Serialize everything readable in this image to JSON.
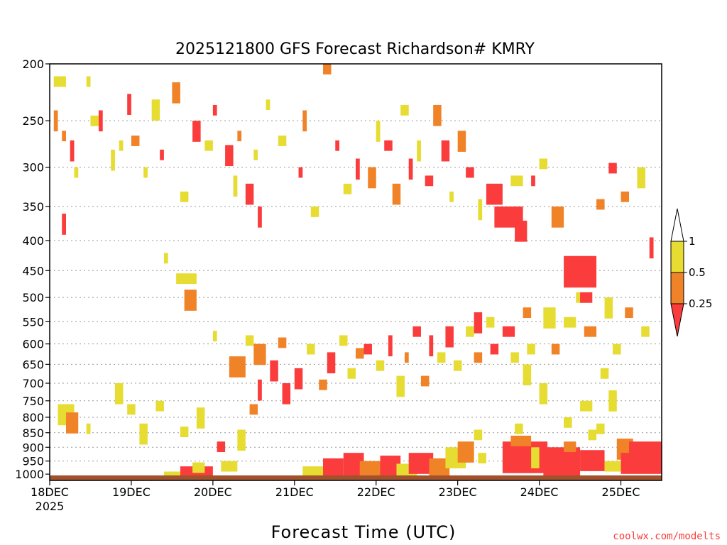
{
  "chart_data": {
    "type": "heatmap",
    "title": "2025121800 GFS Forecast Richardson# KMRY",
    "xlabel": "Forecast Time (UTC)",
    "ylabel": "",
    "credit": "coolwx.com/modelts",
    "x_ticks": [
      {
        "day": 0,
        "label": "18DEC",
        "sublabel": "2025"
      },
      {
        "day": 1,
        "label": "19DEC"
      },
      {
        "day": 2,
        "label": "20DEC"
      },
      {
        "day": 3,
        "label": "21DEC"
      },
      {
        "day": 4,
        "label": "22DEC"
      },
      {
        "day": 5,
        "label": "23DEC"
      },
      {
        "day": 6,
        "label": "24DEC"
      },
      {
        "day": 7,
        "label": "25DEC"
      }
    ],
    "xlim": [
      0,
      7.5
    ],
    "y_levels": [
      200,
      250,
      300,
      350,
      400,
      450,
      500,
      550,
      600,
      650,
      700,
      750,
      800,
      850,
      900,
      950,
      1000
    ],
    "ylim": [
      200,
      1025
    ],
    "y_scale": "pressure (hPa), log",
    "legend": {
      "labels": [
        "1",
        "0.5",
        "0.25"
      ],
      "bins": [
        {
          "range": "0.5-1",
          "color": "#e6dc32"
        },
        {
          "range": "0.25-0.5",
          "color": "#f08228"
        },
        {
          "range": "<0.25",
          "color": "#fa3c3c"
        }
      ]
    },
    "colors": {
      "low": "#fa3c3c",
      "mid": "#f08228",
      "high": "#e6dc32",
      "ground": "#a0522d"
    },
    "cells": [
      [
        0.05,
        210,
        0.2,
        1,
        "high"
      ],
      [
        0.05,
        240,
        0.1,
        2,
        "mid"
      ],
      [
        0.15,
        260,
        0.2,
        1,
        "mid"
      ],
      [
        0.25,
        270,
        0.3,
        2,
        "low"
      ],
      [
        0.3,
        300,
        0.35,
        1,
        "high"
      ],
      [
        0.15,
        360,
        0.2,
        2,
        "low"
      ],
      [
        0.45,
        210,
        0.5,
        1,
        "high"
      ],
      [
        0.5,
        245,
        0.6,
        1,
        "high"
      ],
      [
        0.6,
        240,
        0.65,
        2,
        "low"
      ],
      [
        0.75,
        280,
        0.8,
        2,
        "high"
      ],
      [
        0.85,
        270,
        0.9,
        1,
        "high"
      ],
      [
        0.95,
        225,
        1.0,
        2,
        "low"
      ],
      [
        1.0,
        265,
        1.1,
        1,
        "mid"
      ],
      [
        1.15,
        300,
        1.2,
        1,
        "high"
      ],
      [
        1.25,
        230,
        1.35,
        2,
        "high"
      ],
      [
        1.35,
        280,
        1.4,
        1,
        "low"
      ],
      [
        1.5,
        215,
        1.6,
        2,
        "mid"
      ],
      [
        1.6,
        330,
        1.7,
        1,
        "high"
      ],
      [
        1.75,
        250,
        1.85,
        2,
        "low"
      ],
      [
        1.9,
        270,
        2.0,
        1,
        "high"
      ],
      [
        2.0,
        235,
        2.05,
        1,
        "low"
      ],
      [
        2.15,
        275,
        2.25,
        2,
        "low"
      ],
      [
        2.25,
        310,
        2.3,
        2,
        "high"
      ],
      [
        2.3,
        260,
        2.35,
        1,
        "mid"
      ],
      [
        2.4,
        320,
        2.5,
        2,
        "low"
      ],
      [
        2.5,
        280,
        2.55,
        1,
        "high"
      ],
      [
        2.55,
        350,
        2.6,
        2,
        "low"
      ],
      [
        2.65,
        230,
        2.7,
        1,
        "high"
      ],
      [
        2.8,
        265,
        2.9,
        1,
        "high"
      ],
      [
        3.05,
        300,
        3.1,
        1,
        "low"
      ],
      [
        3.1,
        240,
        3.15,
        2,
        "mid"
      ],
      [
        3.2,
        350,
        3.3,
        1,
        "high"
      ],
      [
        3.35,
        200,
        3.45,
        1,
        "mid"
      ],
      [
        3.5,
        270,
        3.55,
        1,
        "low"
      ],
      [
        3.6,
        320,
        3.7,
        1,
        "high"
      ],
      [
        3.75,
        290,
        3.8,
        2,
        "low"
      ],
      [
        3.9,
        300,
        4.0,
        2,
        "mid"
      ],
      [
        4.0,
        250,
        4.05,
        2,
        "high"
      ],
      [
        4.1,
        270,
        4.2,
        1,
        "low"
      ],
      [
        4.2,
        320,
        4.3,
        2,
        "mid"
      ],
      [
        4.3,
        235,
        4.4,
        1,
        "high"
      ],
      [
        4.4,
        290,
        4.45,
        2,
        "low"
      ],
      [
        4.5,
        270,
        4.55,
        2,
        "high"
      ],
      [
        4.6,
        310,
        4.7,
        1,
        "low"
      ],
      [
        4.7,
        235,
        4.8,
        2,
        "mid"
      ],
      [
        4.8,
        270,
        4.9,
        2,
        "low"
      ],
      [
        4.9,
        330,
        4.95,
        1,
        "high"
      ],
      [
        5.0,
        260,
        5.1,
        2,
        "mid"
      ],
      [
        5.1,
        300,
        5.2,
        1,
        "low"
      ],
      [
        5.25,
        340,
        5.3,
        2,
        "high"
      ],
      [
        5.35,
        320,
        5.55,
        2,
        "low"
      ],
      [
        5.45,
        350,
        5.8,
        2,
        "low"
      ],
      [
        5.65,
        310,
        5.8,
        1,
        "high"
      ],
      [
        5.7,
        370,
        5.85,
        2,
        "low"
      ],
      [
        5.9,
        310,
        5.95,
        1,
        "low"
      ],
      [
        6.0,
        290,
        6.1,
        1,
        "high"
      ],
      [
        6.15,
        350,
        6.3,
        2,
        "mid"
      ],
      [
        6.3,
        425,
        6.7,
        3,
        "low"
      ],
      [
        6.45,
        490,
        6.6,
        1,
        "high"
      ],
      [
        6.7,
        340,
        6.8,
        1,
        "mid"
      ],
      [
        6.85,
        295,
        6.95,
        1,
        "low"
      ],
      [
        7.0,
        330,
        7.1,
        1,
        "mid"
      ],
      [
        7.2,
        300,
        7.3,
        2,
        "high"
      ],
      [
        7.35,
        395,
        7.4,
        2,
        "low"
      ],
      [
        1.55,
        455,
        1.8,
        1,
        "high"
      ],
      [
        1.65,
        485,
        1.8,
        2,
        "mid"
      ],
      [
        1.4,
        420,
        1.45,
        1,
        "high"
      ],
      [
        2.0,
        570,
        2.05,
        1,
        "high"
      ],
      [
        2.2,
        630,
        2.4,
        2,
        "mid"
      ],
      [
        2.4,
        580,
        2.5,
        1,
        "high"
      ],
      [
        2.5,
        600,
        2.65,
        2,
        "mid"
      ],
      [
        2.55,
        690,
        2.6,
        2,
        "low"
      ],
      [
        2.7,
        640,
        2.8,
        2,
        "low"
      ],
      [
        2.8,
        585,
        2.9,
        1,
        "mid"
      ],
      [
        2.85,
        700,
        2.95,
        2,
        "low"
      ],
      [
        3.0,
        660,
        3.1,
        2,
        "low"
      ],
      [
        3.15,
        600,
        3.25,
        1,
        "high"
      ],
      [
        3.3,
        690,
        3.4,
        1,
        "mid"
      ],
      [
        3.4,
        620,
        3.5,
        2,
        "low"
      ],
      [
        3.55,
        580,
        3.65,
        1,
        "high"
      ],
      [
        3.65,
        660,
        3.75,
        1,
        "high"
      ],
      [
        3.75,
        610,
        3.85,
        1,
        "mid"
      ],
      [
        3.85,
        600,
        3.95,
        1,
        "low"
      ],
      [
        4.0,
        640,
        4.1,
        1,
        "high"
      ],
      [
        4.15,
        580,
        4.2,
        2,
        "low"
      ],
      [
        4.25,
        680,
        4.35,
        2,
        "high"
      ],
      [
        4.35,
        620,
        4.4,
        1,
        "mid"
      ],
      [
        4.45,
        560,
        4.55,
        1,
        "low"
      ],
      [
        4.55,
        680,
        4.65,
        1,
        "mid"
      ],
      [
        4.65,
        580,
        4.7,
        2,
        "low"
      ],
      [
        4.75,
        620,
        4.85,
        1,
        "high"
      ],
      [
        4.85,
        560,
        4.95,
        2,
        "low"
      ],
      [
        4.95,
        640,
        5.05,
        1,
        "high"
      ],
      [
        5.1,
        560,
        5.2,
        1,
        "high"
      ],
      [
        5.2,
        530,
        5.3,
        2,
        "low"
      ],
      [
        5.2,
        620,
        5.3,
        1,
        "mid"
      ],
      [
        5.35,
        540,
        5.45,
        1,
        "high"
      ],
      [
        5.4,
        600,
        5.5,
        1,
        "low"
      ],
      [
        5.55,
        560,
        5.7,
        1,
        "low"
      ],
      [
        5.65,
        620,
        5.75,
        1,
        "high"
      ],
      [
        5.8,
        520,
        5.9,
        1,
        "mid"
      ],
      [
        5.85,
        600,
        5.95,
        1,
        "high"
      ],
      [
        6.05,
        520,
        6.2,
        2,
        "high"
      ],
      [
        6.15,
        600,
        6.25,
        1,
        "mid"
      ],
      [
        6.3,
        540,
        6.45,
        1,
        "high"
      ],
      [
        6.5,
        490,
        6.65,
        1,
        "low"
      ],
      [
        6.55,
        560,
        6.7,
        1,
        "mid"
      ],
      [
        6.8,
        500,
        6.9,
        2,
        "high"
      ],
      [
        6.9,
        600,
        7.0,
        1,
        "high"
      ],
      [
        7.05,
        520,
        7.15,
        1,
        "mid"
      ],
      [
        7.25,
        560,
        7.35,
        1,
        "high"
      ],
      [
        0.1,
        760,
        0.3,
        2,
        "high"
      ],
      [
        0.2,
        785,
        0.35,
        2,
        "mid"
      ],
      [
        0.45,
        820,
        0.5,
        1,
        "high"
      ],
      [
        0.8,
        700,
        0.9,
        2,
        "high"
      ],
      [
        0.95,
        760,
        1.05,
        1,
        "high"
      ],
      [
        1.1,
        820,
        1.2,
        2,
        "high"
      ],
      [
        1.3,
        750,
        1.4,
        1,
        "high"
      ],
      [
        1.6,
        830,
        1.7,
        1,
        "high"
      ],
      [
        1.8,
        770,
        1.9,
        2,
        "high"
      ],
      [
        2.05,
        880,
        2.15,
        1,
        "low"
      ],
      [
        2.3,
        840,
        2.4,
        2,
        "high"
      ],
      [
        2.45,
        760,
        2.55,
        1,
        "mid"
      ],
      [
        1.6,
        970,
        2.0,
        2,
        "low"
      ],
      [
        1.75,
        955,
        1.9,
        1,
        "high"
      ],
      [
        1.4,
        990,
        1.6,
        1,
        "high"
      ],
      [
        2.1,
        950,
        2.3,
        1,
        "high"
      ],
      [
        3.1,
        970,
        3.4,
        2,
        "high"
      ],
      [
        3.35,
        940,
        3.6,
        2,
        "low"
      ],
      [
        3.6,
        920,
        3.85,
        3,
        "low"
      ],
      [
        3.8,
        950,
        4.1,
        2,
        "mid"
      ],
      [
        4.05,
        930,
        4.3,
        2,
        "low"
      ],
      [
        4.25,
        960,
        4.5,
        2,
        "high"
      ],
      [
        4.4,
        920,
        4.7,
        2,
        "low"
      ],
      [
        4.65,
        940,
        4.9,
        2,
        "mid"
      ],
      [
        4.85,
        900,
        5.1,
        2,
        "high"
      ],
      [
        5.0,
        880,
        5.2,
        2,
        "mid"
      ],
      [
        5.25,
        920,
        5.35,
        1,
        "high"
      ],
      [
        5.55,
        880,
        6.1,
        3,
        "low"
      ],
      [
        5.65,
        860,
        5.9,
        1,
        "mid"
      ],
      [
        5.9,
        900,
        6.0,
        2,
        "high"
      ],
      [
        6.05,
        900,
        6.5,
        3,
        "low"
      ],
      [
        6.3,
        880,
        6.45,
        1,
        "mid"
      ],
      [
        6.5,
        910,
        6.8,
        2,
        "low"
      ],
      [
        6.8,
        950,
        7.0,
        1,
        "high"
      ],
      [
        6.95,
        870,
        7.15,
        2,
        "mid"
      ],
      [
        7.1,
        880,
        7.5,
        3,
        "low"
      ],
      [
        7.0,
        920,
        7.5,
        2,
        "low"
      ],
      [
        5.8,
        650,
        5.9,
        2,
        "high"
      ],
      [
        6.0,
        700,
        6.1,
        2,
        "high"
      ],
      [
        6.5,
        750,
        6.65,
        1,
        "high"
      ],
      [
        6.75,
        660,
        6.85,
        1,
        "high"
      ],
      [
        5.2,
        840,
        5.3,
        1,
        "high"
      ],
      [
        5.7,
        820,
        5.8,
        1,
        "high"
      ],
      [
        6.3,
        800,
        6.4,
        1,
        "high"
      ],
      [
        6.7,
        820,
        6.8,
        1,
        "high"
      ],
      [
        6.85,
        720,
        6.95,
        2,
        "high"
      ],
      [
        6.6,
        840,
        6.7,
        1,
        "high"
      ]
    ]
  }
}
